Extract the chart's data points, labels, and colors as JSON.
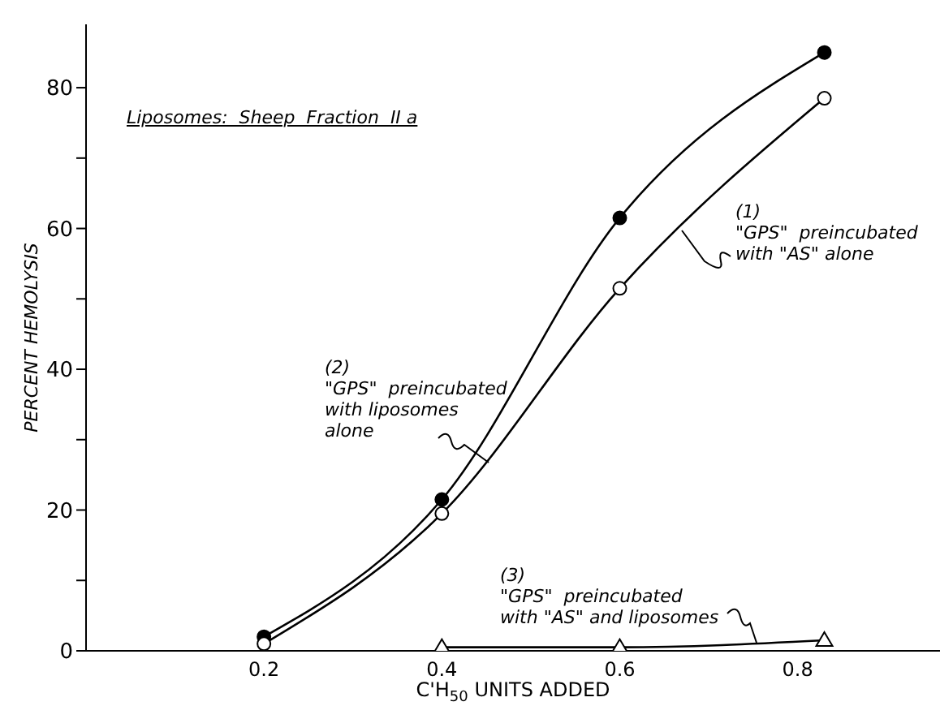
{
  "chart_data": {
    "type": "line",
    "xlabel": "C'H$_{50}$ UNITS ADDED",
    "ylabel": "PERCENT  HEMOLYSIS",
    "xlim": [
      0,
      0.96
    ],
    "ylim": [
      0,
      89
    ],
    "xticks": [
      0.2,
      0.4,
      0.6,
      0.8
    ],
    "yticks": [
      0,
      {
        "value": 10,
        "label": null
      },
      20,
      {
        "value": 30,
        "label": null
      },
      40,
      {
        "value": 50,
        "label": null
      },
      60,
      {
        "value": 70,
        "label": null
      },
      80
    ],
    "x": [
      0.2,
      0.4,
      0.6,
      0.83
    ],
    "line_style": "solid",
    "series": [
      {
        "color": "#000000",
        "marker": "circle",
        "values": [
          2,
          21.5,
          61.5,
          85
        ]
      },
      {
        "color": "#000000",
        "marker": "circle",
        "values": [
          1,
          19.5,
          51.5,
          78.5
        ]
      },
      {
        "color": "#000000",
        "marker": "triangle",
        "values": [
          null,
          0.5,
          0.5,
          1.5
        ]
      }
    ],
    "annotations": [
      "Liposomes:  Sheep  Fraction  II a",
      "(1)\n\"GPS\"  preincubated\nwith \"AS\" alone",
      "(2)\n\"GPS\"  preincubated\nwith liposomes\nalone",
      "(3)\n\"GPS\"  preincubated\nwith \"AS\" and liposomes"
    ]
  }
}
